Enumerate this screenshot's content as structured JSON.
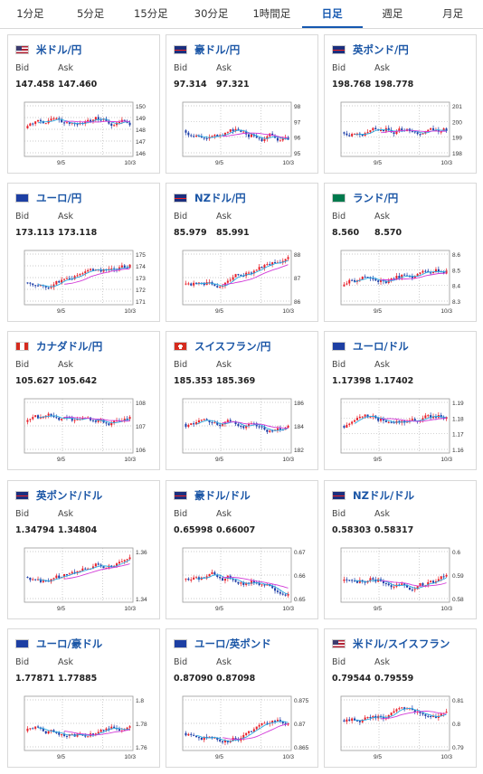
{
  "tabs": [
    "1分足",
    "5分足",
    "15分足",
    "30分足",
    "1時間足",
    "日足",
    "週足",
    "月足"
  ],
  "active_tab": 5,
  "labels": {
    "bid": "Bid",
    "ask": "Ask"
  },
  "colors": {
    "accent": "#1558b0",
    "up": "#e8202a",
    "down": "#1e3ea8",
    "ma_short": "#2aa9e0",
    "ma_long": "#d23ad8"
  },
  "cards": [
    {
      "name": "米ドル/円",
      "flag": "us-jp-flag",
      "bid": "147.458",
      "ask": "147.460",
      "y_ticks": [
        "150",
        "149",
        "148",
        "147",
        "146"
      ],
      "x_ticks": [
        "9/5",
        "10/3"
      ]
    },
    {
      "name": "豪ドル/円",
      "flag": "au-jp-flag",
      "bid": "97.314",
      "ask": "97.321",
      "y_ticks": [
        "98",
        "97",
        "96",
        "95"
      ],
      "x_ticks": [
        "9/5",
        "10/3"
      ]
    },
    {
      "name": "英ポンド/円",
      "flag": "gb-jp-flag",
      "bid": "198.768",
      "ask": "198.778",
      "y_ticks": [
        "201",
        "200",
        "199",
        "198"
      ],
      "x_ticks": [
        "9/5",
        "10/3"
      ]
    },
    {
      "name": "ユーロ/円",
      "flag": "eu-jp-flag",
      "bid": "173.113",
      "ask": "173.118",
      "y_ticks": [
        "175",
        "174",
        "173",
        "172",
        "171"
      ],
      "x_ticks": [
        "9/5",
        "10/3"
      ]
    },
    {
      "name": "NZドル/円",
      "flag": "nz-jp-flag",
      "bid": "85.979",
      "ask": "85.991",
      "y_ticks": [
        "88",
        "87",
        "86"
      ],
      "x_ticks": [
        "9/5",
        "10/3"
      ]
    },
    {
      "name": "ランド/円",
      "flag": "za-jp-flag",
      "bid": "8.560",
      "ask": "8.570",
      "y_ticks": [
        "8.6",
        "8.5",
        "8.4",
        "8.3"
      ],
      "x_ticks": [
        "9/5",
        "10/3"
      ]
    },
    {
      "name": "カナダドル/円",
      "flag": "ca-jp-flag",
      "bid": "105.627",
      "ask": "105.642",
      "y_ticks": [
        "108",
        "107",
        "106"
      ],
      "x_ticks": [
        "9/5",
        "10/3"
      ]
    },
    {
      "name": "スイスフラン/円",
      "flag": "ch-jp-flag",
      "bid": "185.353",
      "ask": "185.369",
      "y_ticks": [
        "186",
        "184",
        "182"
      ],
      "x_ticks": [
        "9/5",
        "10/3"
      ]
    },
    {
      "name": "ユーロ/ドル",
      "flag": "eu-us-flag",
      "bid": "1.17398",
      "ask": "1.17402",
      "y_ticks": [
        "1.19",
        "1.18",
        "1.17",
        "1.16"
      ],
      "x_ticks": [
        "9/5",
        "10/3"
      ]
    },
    {
      "name": "英ポンド/ドル",
      "flag": "gb-us-flag",
      "bid": "1.34794",
      "ask": "1.34804",
      "y_ticks": [
        "1.36",
        "1.34"
      ],
      "x_ticks": [
        "9/5",
        "10/3"
      ]
    },
    {
      "name": "豪ドル/ドル",
      "flag": "au-us-flag",
      "bid": "0.65998",
      "ask": "0.66007",
      "y_ticks": [
        "0.67",
        "0.66",
        "0.65"
      ],
      "x_ticks": [
        "9/5",
        "10/3"
      ]
    },
    {
      "name": "NZドル/ドル",
      "flag": "nz-us-flag",
      "bid": "0.58303",
      "ask": "0.58317",
      "y_ticks": [
        "0.6",
        "0.59",
        "0.58"
      ],
      "x_ticks": [
        "9/5",
        "10/3"
      ]
    },
    {
      "name": "ユーロ/豪ドル",
      "flag": "eu-au-flag",
      "bid": "1.77871",
      "ask": "1.77885",
      "y_ticks": [
        "1.8",
        "1.78",
        "1.76"
      ],
      "x_ticks": [
        "9/5",
        "10/3"
      ]
    },
    {
      "name": "ユーロ/英ポンド",
      "flag": "eu-gb-flag",
      "bid": "0.87090",
      "ask": "0.87098",
      "y_ticks": [
        "0.875",
        "0.87",
        "0.865"
      ],
      "x_ticks": [
        "9/5",
        "10/3"
      ]
    },
    {
      "name": "米ドル/スイスフラン",
      "flag": "us-ch-flag",
      "bid": "0.79544",
      "ask": "0.79559",
      "y_ticks": [
        "0.81",
        "0.8",
        "0.79"
      ],
      "x_ticks": [
        "9/5",
        "10/3"
      ]
    }
  ]
}
